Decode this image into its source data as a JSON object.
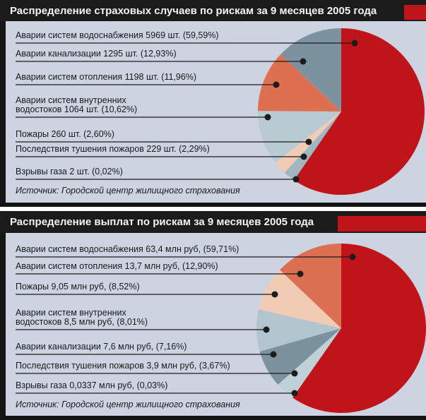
{
  "panels": [
    {
      "title": "Распределение страховых случаев по рискам за 9 месяцев 2005 года",
      "source": "Источник: Городской центр жилищного страхования"
    },
    {
      "title": "Распределение выплат по рискам за 9 месяцев 2005 года",
      "source": "Источник: Городской центр жилищного страхования"
    }
  ],
  "colors": {
    "background": "#cdd3e1",
    "titlebar": "#1b1b1b",
    "accent_red": "#c1131a",
    "frame_black": "#141414",
    "callout": "#1c1c1c"
  },
  "chart_data": [
    {
      "type": "pie",
      "title": "Распределение страховых случаев по рискам за 9 месяцев 2005 года",
      "unit": "шт.",
      "legend_position": "left-callouts",
      "labels": [
        "Аварии систем водоснабжения 5969 шт. (59,59%)",
        "Аварии канализации 1295 шт. (12,93%)",
        "Аварии систем отопления 1198 шт. (11,96%)",
        "Аварии систем внутренних\nводостоков 1064 шт. (10,62%)",
        "Пожары 260 шт. (2,60%)",
        "Последствия тушения пожаров 229 шт. (2,29%)",
        "Взрывы газа 2 шт. (0,02%)"
      ],
      "slices": [
        {
          "name": "Аварии систем водоснабжения",
          "value": 5969,
          "pct": 59.59,
          "color": "#c1131a"
        },
        {
          "name": "Взрывы газа",
          "value": 2,
          "pct": 0.02,
          "color": "#8aa0ac"
        },
        {
          "name": "Последствия тушения пожаров",
          "value": 229,
          "pct": 2.29,
          "color": "#a0b6c0"
        },
        {
          "name": "Пожары",
          "value": 260,
          "pct": 2.6,
          "color": "#f2cbb5"
        },
        {
          "name": "Аварии систем внутренних водостоков",
          "value": 1064,
          "pct": 10.62,
          "color": "#b9cad2"
        },
        {
          "name": "Аварии систем отопления",
          "value": 1198,
          "pct": 11.96,
          "color": "#de6f51"
        },
        {
          "name": "Аварии канализации",
          "value": 1295,
          "pct": 12.93,
          "color": "#7d929f"
        }
      ]
    },
    {
      "type": "pie",
      "title": "Распределение выплат по рискам за 9 месяцев 2005 года",
      "unit": "млн руб",
      "legend_position": "left-callouts",
      "labels": [
        "Аварии систем водоснабжения 63,4 млн руб, (59,71%)",
        "Аварии систем отопления 13,7 млн руб, (12,90%)",
        "Пожары 9,05 млн руб, (8,52%)",
        "Аварии систем внутренних\nводостоков 8,5 млн руб, (8,01%)",
        "Аварии канализации 7,6 млн руб, (7,16%)",
        "Последствия тушения пожаров 3,9 млн руб, (3,67%)",
        "Взрывы газа 0,0337 млн руб, (0,03%)"
      ],
      "slices": [
        {
          "name": "Аварии систем водоснабжения",
          "value": 63.4,
          "pct": 59.71,
          "color": "#c1131a"
        },
        {
          "name": "Взрывы газа",
          "value": 0.0337,
          "pct": 0.03,
          "color": "#8aa0ac"
        },
        {
          "name": "Последствия тушения пожаров",
          "value": 3.9,
          "pct": 3.67,
          "color": "#bfd0d7"
        },
        {
          "name": "Аварии канализации",
          "value": 7.6,
          "pct": 7.16,
          "color": "#7d929f"
        },
        {
          "name": "Аварии систем внутренних водостоков",
          "value": 8.5,
          "pct": 8.01,
          "color": "#b2c5ce"
        },
        {
          "name": "Пожары",
          "value": 9.05,
          "pct": 8.52,
          "color": "#f2cbb5"
        },
        {
          "name": "Аварии систем отопления",
          "value": 13.7,
          "pct": 12.9,
          "color": "#dc6e52"
        }
      ]
    }
  ]
}
